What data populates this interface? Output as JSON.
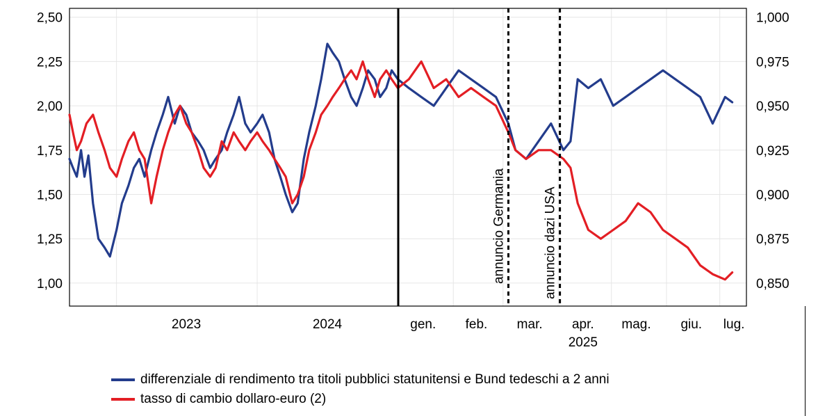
{
  "chart_data": {
    "type": "line",
    "x_axis": {
      "tick_labels": [
        "2023",
        "2024",
        "gen.",
        "feb.",
        "mar.",
        "apr.",
        "mag.",
        "giu.",
        "lug."
      ],
      "sub_label": "2025"
    },
    "y_left": {
      "range": [
        0.87,
        2.55
      ],
      "ticks": [
        "1,00",
        "1,25",
        "1,50",
        "1,75",
        "2,00",
        "2,25",
        "2,50"
      ]
    },
    "y_right": {
      "range": [
        0.837,
        1.005
      ],
      "ticks": [
        "0,850",
        "0,875",
        "0,900",
        "0,925",
        "0,950",
        "0,975",
        "1,000"
      ]
    },
    "grid": true,
    "annotations": [
      {
        "text": "annuncio Germania",
        "x": "2025-03-04"
      },
      {
        "text": "annuncio dazi USA",
        "x": "2025-04-02"
      }
    ],
    "period_divider": "2025-01-01",
    "series": [
      {
        "name": "differenziale di rendimento tra titoli pubblici statunitensi e Bund tedeschi a 2 anni",
        "axis": "left",
        "color": "#233c8c",
        "points": [
          [
            "2022-09-01",
            1.7
          ],
          [
            "2022-09-10",
            1.65
          ],
          [
            "2022-09-20",
            1.6
          ],
          [
            "2022-10-01",
            1.75
          ],
          [
            "2022-10-10",
            1.6
          ],
          [
            "2022-10-20",
            1.72
          ],
          [
            "2022-11-01",
            1.45
          ],
          [
            "2022-11-15",
            1.25
          ],
          [
            "2022-12-01",
            1.2
          ],
          [
            "2022-12-15",
            1.15
          ],
          [
            "2023-01-01",
            1.3
          ],
          [
            "2023-01-15",
            1.45
          ],
          [
            "2023-02-01",
            1.55
          ],
          [
            "2023-02-15",
            1.65
          ],
          [
            "2023-03-01",
            1.7
          ],
          [
            "2023-03-15",
            1.6
          ],
          [
            "2023-04-01",
            1.75
          ],
          [
            "2023-04-15",
            1.85
          ],
          [
            "2023-05-01",
            1.95
          ],
          [
            "2023-05-15",
            2.05
          ],
          [
            "2023-06-01",
            1.9
          ],
          [
            "2023-06-15",
            2.0
          ],
          [
            "2023-07-01",
            1.95
          ],
          [
            "2023-07-15",
            1.85
          ],
          [
            "2023-08-01",
            1.8
          ],
          [
            "2023-08-15",
            1.75
          ],
          [
            "2023-09-01",
            1.65
          ],
          [
            "2023-09-15",
            1.7
          ],
          [
            "2023-10-01",
            1.75
          ],
          [
            "2023-10-15",
            1.85
          ],
          [
            "2023-11-01",
            1.95
          ],
          [
            "2023-11-15",
            2.05
          ],
          [
            "2023-12-01",
            1.9
          ],
          [
            "2023-12-15",
            1.85
          ],
          [
            "2024-01-01",
            1.9
          ],
          [
            "2024-01-15",
            1.95
          ],
          [
            "2024-02-01",
            1.85
          ],
          [
            "2024-02-15",
            1.7
          ],
          [
            "2024-03-01",
            1.6
          ],
          [
            "2024-03-15",
            1.5
          ],
          [
            "2024-04-01",
            1.4
          ],
          [
            "2024-04-15",
            1.45
          ],
          [
            "2024-05-01",
            1.7
          ],
          [
            "2024-05-15",
            1.85
          ],
          [
            "2024-06-01",
            2.0
          ],
          [
            "2024-06-15",
            2.15
          ],
          [
            "2024-07-01",
            2.35
          ],
          [
            "2024-07-15",
            2.3
          ],
          [
            "2024-07-31",
            2.25
          ],
          [
            "2024-08-15",
            2.15
          ],
          [
            "2024-09-01",
            2.05
          ],
          [
            "2024-09-15",
            2.0
          ],
          [
            "2024-10-01",
            2.1
          ],
          [
            "2024-10-15",
            2.2
          ],
          [
            "2024-11-01",
            2.15
          ],
          [
            "2024-11-15",
            2.05
          ],
          [
            "2024-12-01",
            2.1
          ],
          [
            "2024-12-15",
            2.2
          ],
          [
            "2024-12-31",
            2.15
          ],
          [
            "2025-01-07",
            2.1
          ],
          [
            "2025-01-14",
            2.05
          ],
          [
            "2025-01-21",
            2.0
          ],
          [
            "2025-01-28",
            2.1
          ],
          [
            "2025-02-04",
            2.2
          ],
          [
            "2025-02-11",
            2.15
          ],
          [
            "2025-02-18",
            2.1
          ],
          [
            "2025-02-25",
            2.05
          ],
          [
            "2025-03-04",
            1.9
          ],
          [
            "2025-03-08",
            1.75
          ],
          [
            "2025-03-14",
            1.7
          ],
          [
            "2025-03-21",
            1.8
          ],
          [
            "2025-03-28",
            1.9
          ],
          [
            "2025-04-04",
            1.75
          ],
          [
            "2025-04-08",
            1.8
          ],
          [
            "2025-04-12",
            2.15
          ],
          [
            "2025-04-18",
            2.1
          ],
          [
            "2025-04-25",
            2.15
          ],
          [
            "2025-05-02",
            2.0
          ],
          [
            "2025-05-09",
            2.05
          ],
          [
            "2025-05-16",
            2.1
          ],
          [
            "2025-05-23",
            2.15
          ],
          [
            "2025-05-30",
            2.2
          ],
          [
            "2025-06-06",
            2.15
          ],
          [
            "2025-06-13",
            2.1
          ],
          [
            "2025-06-20",
            2.05
          ],
          [
            "2025-06-27",
            1.9
          ],
          [
            "2025-07-04",
            2.05
          ],
          [
            "2025-07-08",
            2.02
          ]
        ]
      },
      {
        "name": "tasso di cambio dollaro-euro (2)",
        "axis": "right",
        "color": "#e31e24",
        "points": [
          [
            "2022-09-01",
            0.945
          ],
          [
            "2022-09-10",
            0.935
          ],
          [
            "2022-09-20",
            0.925
          ],
          [
            "2022-10-01",
            0.93
          ],
          [
            "2022-10-15",
            0.94
          ],
          [
            "2022-11-01",
            0.945
          ],
          [
            "2022-11-15",
            0.935
          ],
          [
            "2022-12-01",
            0.925
          ],
          [
            "2022-12-15",
            0.915
          ],
          [
            "2023-01-01",
            0.91
          ],
          [
            "2023-01-15",
            0.92
          ],
          [
            "2023-02-01",
            0.93
          ],
          [
            "2023-02-15",
            0.935
          ],
          [
            "2023-03-01",
            0.925
          ],
          [
            "2023-03-15",
            0.92
          ],
          [
            "2023-04-01",
            0.895
          ],
          [
            "2023-04-15",
            0.91
          ],
          [
            "2023-05-01",
            0.925
          ],
          [
            "2023-05-15",
            0.935
          ],
          [
            "2023-06-01",
            0.945
          ],
          [
            "2023-06-15",
            0.95
          ],
          [
            "2023-07-01",
            0.94
          ],
          [
            "2023-07-15",
            0.935
          ],
          [
            "2023-08-01",
            0.925
          ],
          [
            "2023-08-15",
            0.915
          ],
          [
            "2023-09-01",
            0.91
          ],
          [
            "2023-09-15",
            0.915
          ],
          [
            "2023-10-01",
            0.93
          ],
          [
            "2023-10-15",
            0.925
          ],
          [
            "2023-11-01",
            0.935
          ],
          [
            "2023-11-15",
            0.93
          ],
          [
            "2023-12-01",
            0.925
          ],
          [
            "2023-12-15",
            0.93
          ],
          [
            "2024-01-01",
            0.935
          ],
          [
            "2024-01-15",
            0.93
          ],
          [
            "2024-02-01",
            0.925
          ],
          [
            "2024-02-15",
            0.92
          ],
          [
            "2024-03-01",
            0.915
          ],
          [
            "2024-03-15",
            0.91
          ],
          [
            "2024-04-01",
            0.895
          ],
          [
            "2024-04-15",
            0.9
          ],
          [
            "2024-05-01",
            0.91
          ],
          [
            "2024-05-15",
            0.925
          ],
          [
            "2024-06-01",
            0.935
          ],
          [
            "2024-06-15",
            0.945
          ],
          [
            "2024-07-01",
            0.95
          ],
          [
            "2024-07-15",
            0.955
          ],
          [
            "2024-07-31",
            0.96
          ],
          [
            "2024-08-15",
            0.965
          ],
          [
            "2024-09-01",
            0.97
          ],
          [
            "2024-09-15",
            0.965
          ],
          [
            "2024-10-01",
            0.975
          ],
          [
            "2024-10-15",
            0.965
          ],
          [
            "2024-11-01",
            0.955
          ],
          [
            "2024-11-15",
            0.965
          ],
          [
            "2024-12-01",
            0.97
          ],
          [
            "2024-12-15",
            0.965
          ],
          [
            "2024-12-31",
            0.96
          ],
          [
            "2025-01-07",
            0.965
          ],
          [
            "2025-01-14",
            0.975
          ],
          [
            "2025-01-21",
            0.96
          ],
          [
            "2025-01-28",
            0.965
          ],
          [
            "2025-02-04",
            0.955
          ],
          [
            "2025-02-11",
            0.96
          ],
          [
            "2025-02-18",
            0.955
          ],
          [
            "2025-02-25",
            0.95
          ],
          [
            "2025-03-04",
            0.935
          ],
          [
            "2025-03-08",
            0.925
          ],
          [
            "2025-03-14",
            0.92
          ],
          [
            "2025-03-21",
            0.925
          ],
          [
            "2025-03-28",
            0.925
          ],
          [
            "2025-04-04",
            0.92
          ],
          [
            "2025-04-08",
            0.915
          ],
          [
            "2025-04-12",
            0.895
          ],
          [
            "2025-04-18",
            0.88
          ],
          [
            "2025-04-25",
            0.875
          ],
          [
            "2025-05-02",
            0.88
          ],
          [
            "2025-05-09",
            0.885
          ],
          [
            "2025-05-16",
            0.895
          ],
          [
            "2025-05-23",
            0.89
          ],
          [
            "2025-05-30",
            0.88
          ],
          [
            "2025-06-06",
            0.875
          ],
          [
            "2025-06-13",
            0.87
          ],
          [
            "2025-06-20",
            0.86
          ],
          [
            "2025-06-27",
            0.855
          ],
          [
            "2025-07-04",
            0.852
          ],
          [
            "2025-07-08",
            0.856
          ]
        ]
      }
    ]
  }
}
